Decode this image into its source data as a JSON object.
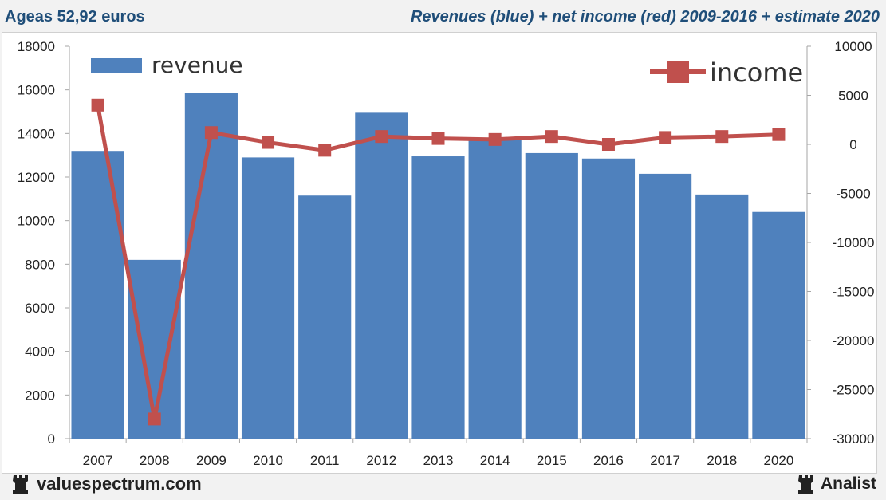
{
  "header": {
    "left_title": "Ageas 52,92 euros",
    "right_title": "Revenues (blue) + net income (red) 2009-2016 + estimate 2020"
  },
  "footer": {
    "left_brand": "valuespectrum.com",
    "right_brand": "Analist"
  },
  "colors": {
    "bar": "#4f81bd",
    "line": "#c0504d",
    "title": "#1f4e79"
  },
  "chart_data": {
    "type": "bar",
    "categories": [
      "2007",
      "2008",
      "2009",
      "2010",
      "2011",
      "2012",
      "2013",
      "2014",
      "2015",
      "2016",
      "2017",
      "2018",
      "2020"
    ],
    "series": [
      {
        "name": "revenue",
        "type": "bar",
        "axis": "left",
        "values": [
          13200,
          8200,
          15850,
          12900,
          11150,
          14950,
          12950,
          13750,
          13100,
          12850,
          12150,
          11200,
          10400
        ]
      },
      {
        "name": "income",
        "type": "line",
        "axis": "right",
        "values": [
          4000,
          -28000,
          1200,
          200,
          -600,
          800,
          600,
          500,
          800,
          0,
          700,
          800,
          1000
        ]
      }
    ],
    "left_axis": {
      "min": 0,
      "max": 18000,
      "ticks": [
        0,
        2000,
        4000,
        6000,
        8000,
        10000,
        12000,
        14000,
        16000,
        18000
      ]
    },
    "right_axis": {
      "min": -30000,
      "max": 10000,
      "ticks": [
        -30000,
        -25000,
        -20000,
        -15000,
        -10000,
        -5000,
        0,
        5000,
        10000
      ]
    },
    "legend": {
      "bar_label": "revenue",
      "line_label": "income"
    }
  }
}
